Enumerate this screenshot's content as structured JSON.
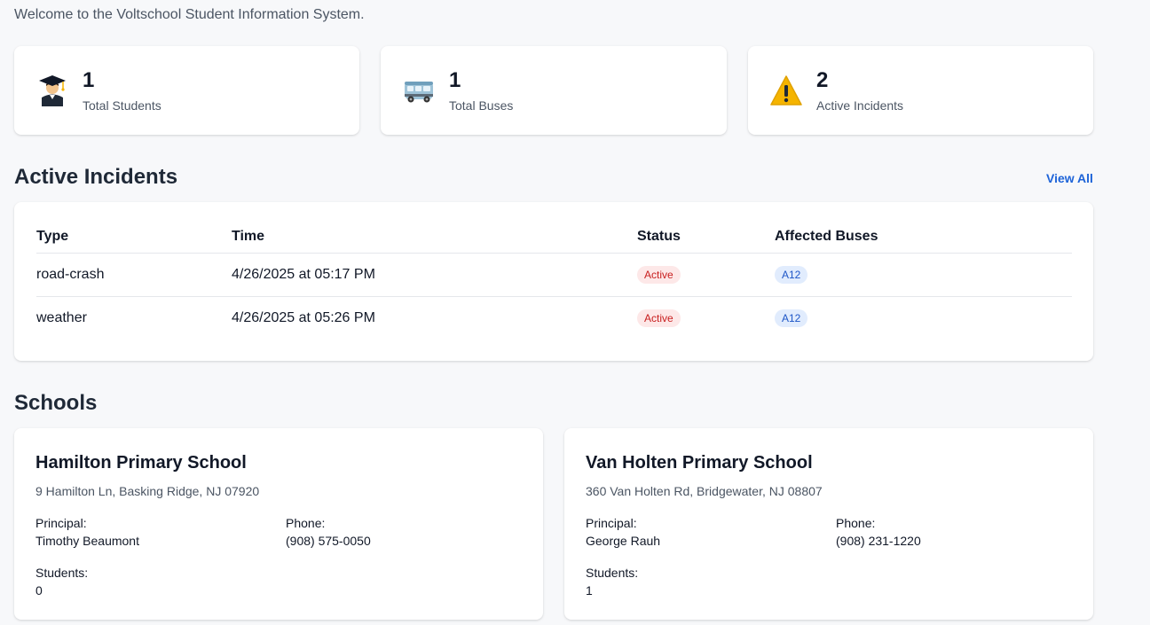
{
  "welcome": "Welcome to the Voltschool Student Information System.",
  "stats": [
    {
      "icon": "graduate-icon",
      "value": "1",
      "label": "Total Students"
    },
    {
      "icon": "bus-icon",
      "value": "1",
      "label": "Total Buses"
    },
    {
      "icon": "warning-icon",
      "value": "2",
      "label": "Active Incidents"
    }
  ],
  "incidents": {
    "title": "Active Incidents",
    "view_all": "View All",
    "headers": {
      "type": "Type",
      "time": "Time",
      "status": "Status",
      "buses": "Affected Buses"
    },
    "rows": [
      {
        "type": "road-crash",
        "time": "4/26/2025 at 05:17 PM",
        "status": "Active",
        "bus": "A12"
      },
      {
        "type": "weather",
        "time": "4/26/2025 at 05:26 PM",
        "status": "Active",
        "bus": "A12"
      }
    ]
  },
  "schools": {
    "title": "Schools",
    "principal_label": "Principal:",
    "phone_label": "Phone:",
    "students_label": "Students:",
    "items": [
      {
        "name": "Hamilton Primary School",
        "address": "9 Hamilton Ln, Basking Ridge, NJ 07920",
        "principal": "Timothy Beaumont",
        "phone": "(908) 575-0050",
        "students": "0"
      },
      {
        "name": "Van Holten Primary School",
        "address": "360 Van Holten Rd, Bridgewater, NJ 08807",
        "principal": "George Rauh",
        "phone": "(908) 231-1220",
        "students": "1"
      }
    ]
  },
  "colors": {
    "accent": "#1d63d8",
    "status_bg": "#fde8e8",
    "status_text": "#c81e1e",
    "bus_badge_bg": "#e1ecfd",
    "bus_badge_text": "#1e56c7",
    "warning": "#f5b400"
  }
}
